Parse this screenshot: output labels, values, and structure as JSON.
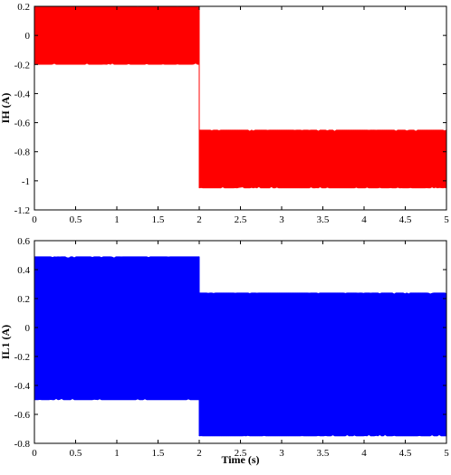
{
  "chart_data": [
    {
      "type": "area",
      "ylabel": "IH (A)",
      "xlabel": "",
      "xlim": [
        0,
        5
      ],
      "ylim": [
        -1.2,
        0.2
      ],
      "xticks": [
        "0",
        "0.5",
        "1",
        "1.5",
        "2",
        "2.5",
        "3",
        "3.5",
        "4",
        "4.5",
        "5"
      ],
      "yticks": [
        "0.2",
        "0",
        "-0.2",
        "-0.4",
        "-0.6",
        "-0.8",
        "-1",
        "-1.2"
      ],
      "color": "#ff0000",
      "series": [
        {
          "segments": [
            {
              "x_start": 0,
              "x_end": 2,
              "y_min": -0.2,
              "y_max": 0.2
            },
            {
              "x_start": 2,
              "x_end": 5,
              "y_min": -1.05,
              "y_max": -0.65
            }
          ]
        }
      ]
    },
    {
      "type": "area",
      "ylabel": "IL1 (A)",
      "xlabel": "Time (s)",
      "xlim": [
        0,
        5
      ],
      "ylim": [
        -0.8,
        0.6
      ],
      "xticks": [
        "0",
        "0.5",
        "1",
        "1.5",
        "2",
        "2.5",
        "3",
        "3.5",
        "4",
        "4.5",
        "5"
      ],
      "yticks": [
        "0.6",
        "0.4",
        "0.2",
        "0",
        "-0.2",
        "-0.4",
        "-0.6",
        "-0.8"
      ],
      "color": "#0000ff",
      "series": [
        {
          "segments": [
            {
              "x_start": 0,
              "x_end": 2,
              "y_min": -0.5,
              "y_max": 0.49
            },
            {
              "x_start": 2,
              "x_end": 5,
              "y_min": -0.75,
              "y_max": 0.24
            }
          ]
        }
      ]
    }
  ]
}
